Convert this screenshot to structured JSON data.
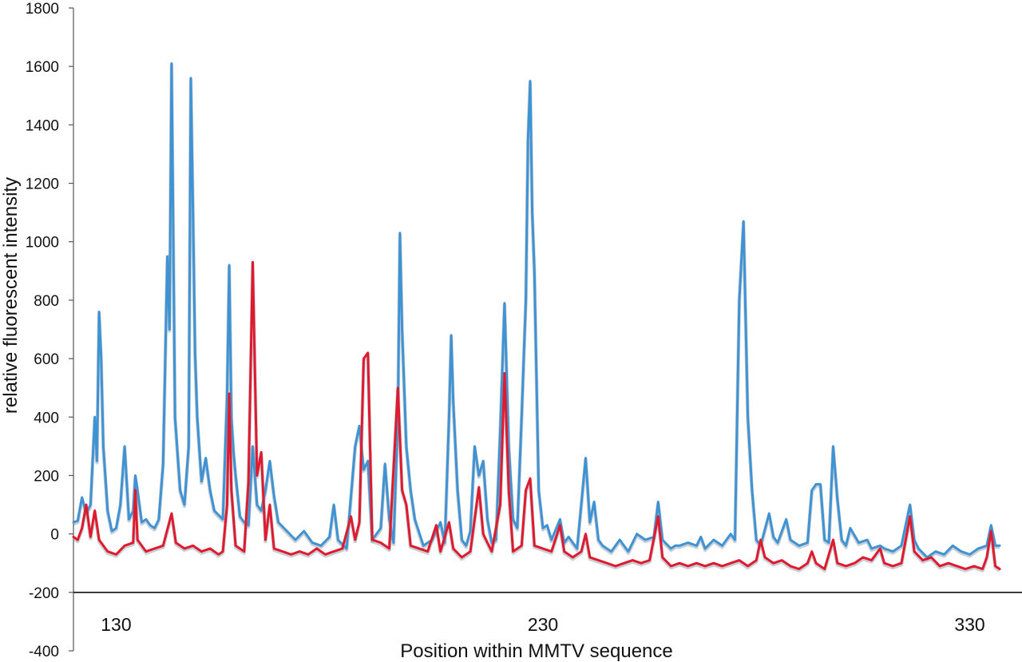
{
  "chart_data": {
    "type": "line",
    "title": "",
    "xlabel": "Position within MMTV sequence",
    "ylabel": "relative fluorescent intensity",
    "xlim": [
      120,
      340
    ],
    "ylim": [
      -400,
      1800
    ],
    "yticks": [
      -400,
      -200,
      0,
      200,
      400,
      600,
      800,
      1000,
      1200,
      1400,
      1600,
      1800
    ],
    "xticks": [
      130,
      230,
      330
    ],
    "baseline_y": -200,
    "grid": false,
    "legend": "none",
    "series": [
      {
        "color": "#3f93d3",
        "points": [
          [
            120.0,
            40
          ],
          [
            121.0,
            45
          ],
          [
            122.0,
            125
          ],
          [
            123.0,
            70
          ],
          [
            124.0,
            100
          ],
          [
            125.0,
            400
          ],
          [
            125.5,
            250
          ],
          [
            126.0,
            760
          ],
          [
            126.5,
            600
          ],
          [
            127.0,
            300
          ],
          [
            128.0,
            80
          ],
          [
            129.0,
            10
          ],
          [
            130.0,
            20
          ],
          [
            131.0,
            100
          ],
          [
            132.0,
            300
          ],
          [
            133.0,
            50
          ],
          [
            134.0,
            80
          ],
          [
            134.5,
            200
          ],
          [
            135.0,
            150
          ],
          [
            136.0,
            40
          ],
          [
            137.0,
            50
          ],
          [
            138.0,
            30
          ],
          [
            139.0,
            20
          ],
          [
            140.0,
            50
          ],
          [
            141.0,
            240
          ],
          [
            142.0,
            950
          ],
          [
            142.5,
            700
          ],
          [
            143.0,
            1610
          ],
          [
            143.8,
            400
          ],
          [
            145.0,
            150
          ],
          [
            146.0,
            100
          ],
          [
            147.0,
            300
          ],
          [
            147.5,
            1560
          ],
          [
            148.0,
            1100
          ],
          [
            148.5,
            620
          ],
          [
            149.0,
            400
          ],
          [
            150.0,
            180
          ],
          [
            151.0,
            260
          ],
          [
            152.0,
            150
          ],
          [
            153.0,
            80
          ],
          [
            155.0,
            50
          ],
          [
            156.0,
            470
          ],
          [
            156.5,
            920
          ],
          [
            157.0,
            400
          ],
          [
            157.5,
            280
          ],
          [
            158.0,
            200
          ],
          [
            159.0,
            60
          ],
          [
            160.0,
            40
          ],
          [
            161.0,
            30
          ],
          [
            162.0,
            300
          ],
          [
            163.0,
            100
          ],
          [
            164.0,
            80
          ],
          [
            165.0,
            150
          ],
          [
            166.0,
            250
          ],
          [
            167.0,
            130
          ],
          [
            168.0,
            40
          ],
          [
            170.0,
            10
          ],
          [
            172.0,
            -20
          ],
          [
            174.0,
            10
          ],
          [
            176.0,
            -30
          ],
          [
            178.0,
            -40
          ],
          [
            180.0,
            -10
          ],
          [
            181.0,
            100
          ],
          [
            182.0,
            -20
          ],
          [
            184.0,
            -50
          ],
          [
            186.0,
            300
          ],
          [
            187.0,
            370
          ],
          [
            188.0,
            220
          ],
          [
            189.0,
            250
          ],
          [
            190.0,
            -20
          ],
          [
            192.0,
            20
          ],
          [
            193.0,
            240
          ],
          [
            194.0,
            50
          ],
          [
            195.0,
            -30
          ],
          [
            196.0,
            400
          ],
          [
            196.5,
            1030
          ],
          [
            197.0,
            700
          ],
          [
            198.0,
            300
          ],
          [
            199.0,
            150
          ],
          [
            200.0,
            50
          ],
          [
            202.0,
            -40
          ],
          [
            204.0,
            -20
          ],
          [
            206.0,
            40
          ],
          [
            207.0,
            -30
          ],
          [
            208.0,
            400
          ],
          [
            208.5,
            680
          ],
          [
            209.0,
            450
          ],
          [
            210.0,
            150
          ],
          [
            211.0,
            -20
          ],
          [
            212.0,
            -40
          ],
          [
            213.0,
            10
          ],
          [
            214.0,
            300
          ],
          [
            215.0,
            200
          ],
          [
            216.0,
            250
          ],
          [
            217.0,
            50
          ],
          [
            218.0,
            -30
          ],
          [
            219.0,
            -20
          ],
          [
            220.0,
            350
          ],
          [
            221.0,
            790
          ],
          [
            222.0,
            300
          ],
          [
            223.0,
            50
          ],
          [
            224.0,
            20
          ],
          [
            225.0,
            400
          ],
          [
            226.0,
            800
          ],
          [
            226.5,
            1350
          ],
          [
            227.0,
            1550
          ],
          [
            227.5,
            1100
          ],
          [
            228.0,
            900
          ],
          [
            229.0,
            150
          ],
          [
            230.0,
            20
          ],
          [
            231.0,
            30
          ],
          [
            232.0,
            -20
          ],
          [
            234.0,
            50
          ],
          [
            235.0,
            -30
          ],
          [
            236.0,
            -10
          ],
          [
            238.0,
            -50
          ],
          [
            240.0,
            260
          ],
          [
            241.0,
            40
          ],
          [
            242.0,
            110
          ],
          [
            243.0,
            -20
          ],
          [
            244.0,
            -40
          ],
          [
            246.0,
            -60
          ],
          [
            248.0,
            -20
          ],
          [
            250.0,
            -60
          ],
          [
            252.0,
            0
          ],
          [
            254.0,
            -20
          ],
          [
            256.0,
            -10
          ],
          [
            257.0,
            110
          ],
          [
            258.0,
            -20
          ],
          [
            260.0,
            -50
          ],
          [
            261.0,
            -40
          ],
          [
            262.0,
            -40
          ],
          [
            264.0,
            -30
          ],
          [
            266.0,
            -40
          ],
          [
            267.0,
            -10
          ],
          [
            268.0,
            -50
          ],
          [
            270.0,
            -20
          ],
          [
            272.0,
            -40
          ],
          [
            274.0,
            0
          ],
          [
            275.0,
            -20
          ],
          [
            276.0,
            800
          ],
          [
            277.0,
            1070
          ],
          [
            278.0,
            400
          ],
          [
            279.0,
            150
          ],
          [
            280.0,
            -20
          ],
          [
            281.0,
            -40
          ],
          [
            283.0,
            70
          ],
          [
            284.0,
            -10
          ],
          [
            285.0,
            -30
          ],
          [
            287.0,
            50
          ],
          [
            288.0,
            -20
          ],
          [
            290.0,
            -40
          ],
          [
            292.0,
            -30
          ],
          [
            293.0,
            150
          ],
          [
            294.0,
            170
          ],
          [
            295.0,
            170
          ],
          [
            296.0,
            -20
          ],
          [
            297.0,
            -30
          ],
          [
            298.0,
            300
          ],
          [
            299.0,
            120
          ],
          [
            300.0,
            -20
          ],
          [
            301.0,
            -40
          ],
          [
            302.0,
            20
          ],
          [
            304.0,
            -30
          ],
          [
            306.0,
            -20
          ],
          [
            307.0,
            -50
          ],
          [
            309.0,
            -40
          ],
          [
            310.0,
            -50
          ],
          [
            312.0,
            -60
          ],
          [
            314.0,
            -40
          ],
          [
            316.0,
            100
          ],
          [
            317.0,
            -20
          ],
          [
            318.0,
            -50
          ],
          [
            320.0,
            -80
          ],
          [
            322.0,
            -60
          ],
          [
            324.0,
            -70
          ],
          [
            326.0,
            -40
          ],
          [
            328.0,
            -60
          ],
          [
            330.0,
            -70
          ],
          [
            332.0,
            -50
          ],
          [
            334.0,
            -40
          ],
          [
            335.0,
            30
          ],
          [
            336.0,
            -40
          ],
          [
            337.0,
            -40
          ]
        ]
      },
      {
        "color": "#e01a2e",
        "points": [
          [
            120.0,
            -10
          ],
          [
            121.0,
            -20
          ],
          [
            122.0,
            20
          ],
          [
            123.0,
            100
          ],
          [
            124.0,
            -10
          ],
          [
            125.0,
            80
          ],
          [
            126.0,
            -20
          ],
          [
            128.0,
            -60
          ],
          [
            130.0,
            -70
          ],
          [
            132.0,
            -40
          ],
          [
            134.0,
            -30
          ],
          [
            134.5,
            150
          ],
          [
            135.0,
            -20
          ],
          [
            137.0,
            -60
          ],
          [
            139.0,
            -50
          ],
          [
            141.0,
            -40
          ],
          [
            143.0,
            70
          ],
          [
            144.0,
            -30
          ],
          [
            146.0,
            -50
          ],
          [
            148.0,
            -40
          ],
          [
            150.0,
            -60
          ],
          [
            152.0,
            -50
          ],
          [
            154.0,
            -70
          ],
          [
            155.0,
            -60
          ],
          [
            156.0,
            100
          ],
          [
            156.5,
            480
          ],
          [
            157.0,
            150
          ],
          [
            158.0,
            -40
          ],
          [
            160.0,
            -60
          ],
          [
            161.0,
            180
          ],
          [
            162.0,
            930
          ],
          [
            163.0,
            200
          ],
          [
            164.0,
            280
          ],
          [
            165.0,
            -20
          ],
          [
            166.0,
            100
          ],
          [
            167.0,
            -50
          ],
          [
            169.0,
            -60
          ],
          [
            171.0,
            -70
          ],
          [
            173.0,
            -60
          ],
          [
            175.0,
            -70
          ],
          [
            177.0,
            -50
          ],
          [
            179.0,
            -70
          ],
          [
            181.0,
            -60
          ],
          [
            183.0,
            -50
          ],
          [
            185.0,
            60
          ],
          [
            186.0,
            -20
          ],
          [
            187.0,
            40
          ],
          [
            188.0,
            600
          ],
          [
            189.0,
            620
          ],
          [
            190.0,
            -20
          ],
          [
            192.0,
            -30
          ],
          [
            194.0,
            -50
          ],
          [
            196.0,
            500
          ],
          [
            197.0,
            150
          ],
          [
            198.0,
            100
          ],
          [
            199.0,
            -40
          ],
          [
            201.0,
            -50
          ],
          [
            203.0,
            -60
          ],
          [
            205.0,
            30
          ],
          [
            206.0,
            -60
          ],
          [
            208.0,
            40
          ],
          [
            209.0,
            -50
          ],
          [
            211.0,
            -80
          ],
          [
            213.0,
            -60
          ],
          [
            215.0,
            160
          ],
          [
            216.0,
            0
          ],
          [
            218.0,
            -60
          ],
          [
            220.0,
            100
          ],
          [
            221.0,
            550
          ],
          [
            222.0,
            150
          ],
          [
            223.0,
            -60
          ],
          [
            225.0,
            -40
          ],
          [
            226.0,
            150
          ],
          [
            227.0,
            190
          ],
          [
            228.0,
            -40
          ],
          [
            230.0,
            -50
          ],
          [
            232.0,
            -60
          ],
          [
            234.0,
            30
          ],
          [
            235.0,
            -60
          ],
          [
            237.0,
            -80
          ],
          [
            239.0,
            -60
          ],
          [
            240.0,
            0
          ],
          [
            241.0,
            -80
          ],
          [
            243.0,
            -90
          ],
          [
            245.0,
            -100
          ],
          [
            247.0,
            -110
          ],
          [
            249.0,
            -100
          ],
          [
            251.0,
            -90
          ],
          [
            253.0,
            -100
          ],
          [
            255.0,
            -90
          ],
          [
            257.0,
            60
          ],
          [
            258.0,
            -80
          ],
          [
            260.0,
            -110
          ],
          [
            262.0,
            -100
          ],
          [
            264.0,
            -110
          ],
          [
            266.0,
            -100
          ],
          [
            268.0,
            -110
          ],
          [
            270.0,
            -100
          ],
          [
            272.0,
            -110
          ],
          [
            274.0,
            -100
          ],
          [
            276.0,
            -90
          ],
          [
            278.0,
            -110
          ],
          [
            280.0,
            -90
          ],
          [
            281.0,
            -20
          ],
          [
            282.0,
            -80
          ],
          [
            284.0,
            -100
          ],
          [
            286.0,
            -90
          ],
          [
            288.0,
            -110
          ],
          [
            290.0,
            -120
          ],
          [
            292.0,
            -100
          ],
          [
            293.0,
            -60
          ],
          [
            294.0,
            -100
          ],
          [
            296.0,
            -120
          ],
          [
            298.0,
            -20
          ],
          [
            299.0,
            -100
          ],
          [
            301.0,
            -110
          ],
          [
            303.0,
            -100
          ],
          [
            305.0,
            -80
          ],
          [
            307.0,
            -90
          ],
          [
            309.0,
            -50
          ],
          [
            310.0,
            -100
          ],
          [
            312.0,
            -110
          ],
          [
            314.0,
            -100
          ],
          [
            316.0,
            60
          ],
          [
            317.0,
            -60
          ],
          [
            319.0,
            -90
          ],
          [
            321.0,
            -80
          ],
          [
            323.0,
            -110
          ],
          [
            325.0,
            -100
          ],
          [
            327.0,
            -110
          ],
          [
            329.0,
            -120
          ],
          [
            331.0,
            -110
          ],
          [
            333.0,
            -120
          ],
          [
            334.0,
            -80
          ],
          [
            335.0,
            10
          ],
          [
            336.0,
            -110
          ],
          [
            337.0,
            -120
          ]
        ]
      }
    ]
  }
}
